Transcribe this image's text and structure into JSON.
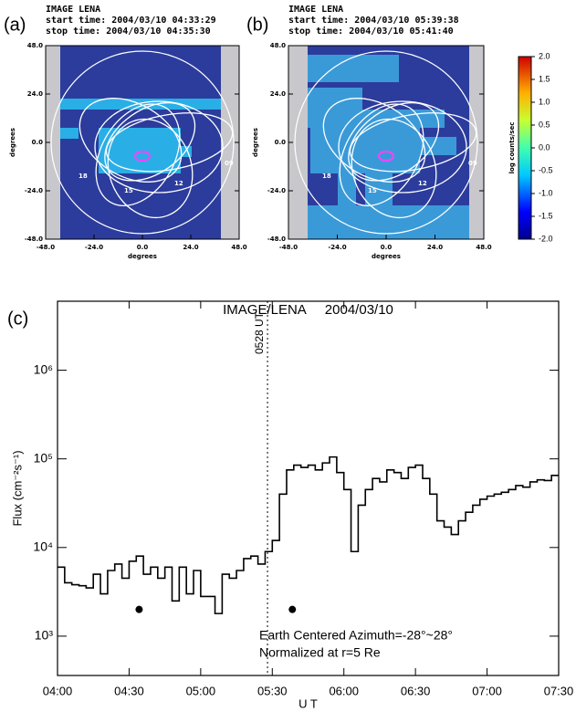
{
  "chart_data": [
    {
      "type": "image",
      "panel": "(a)",
      "title": "IMAGE LENA",
      "subtitle": [
        "start time: 2004/03/10 04:33:29",
        "stop time: 2004/03/10 04:35:30"
      ],
      "xlabel": "degrees",
      "ylabel": "degrees",
      "xlim": [
        -48,
        48
      ],
      "ylim": [
        -48,
        48
      ],
      "xticks": [
        {
          "value": -48,
          "label": "-48.0"
        },
        {
          "value": -24,
          "label": "-24.0"
        },
        {
          "value": 0,
          "label": "0.0"
        },
        {
          "value": 24,
          "label": "24.0"
        },
        {
          "value": 48,
          "label": "48.0"
        }
      ],
      "yticks": [
        {
          "value": -48,
          "label": "-48.0"
        },
        {
          "value": -24,
          "label": "-24.0"
        },
        {
          "value": 0,
          "label": "0.0"
        },
        {
          "value": 24,
          "label": "24.0"
        },
        {
          "value": 48,
          "label": "48.0"
        }
      ],
      "orbit_labels": [
        "18",
        "15",
        "12",
        "09"
      ]
    },
    {
      "type": "image",
      "panel": "(b)",
      "title": "IMAGE LENA",
      "subtitle": [
        "start time: 2004/03/10 05:39:38",
        "stop time: 2004/03/10 05:41:40"
      ],
      "xlabel": "degrees",
      "ylabel": "degrees",
      "xlim": [
        -48,
        48
      ],
      "ylim": [
        -48,
        48
      ],
      "xticks": [
        {
          "value": -48,
          "label": "-48.0"
        },
        {
          "value": -24,
          "label": "-24.0"
        },
        {
          "value": 0,
          "label": "0.0"
        },
        {
          "value": 24,
          "label": "24.0"
        },
        {
          "value": 48,
          "label": "48.0"
        }
      ],
      "yticks": [
        {
          "value": -48,
          "label": "-48.0"
        },
        {
          "value": -24,
          "label": "-24.0"
        },
        {
          "value": 0,
          "label": "0.0"
        },
        {
          "value": 24,
          "label": "24.0"
        },
        {
          "value": 48,
          "label": "48.0"
        }
      ],
      "orbit_labels": [
        "18",
        "15",
        "12",
        "09"
      ],
      "colorbar": {
        "label": "log counts/sec",
        "lim": [
          -2,
          2
        ],
        "ticks": [
          {
            "value": 2,
            "label": "2.0"
          },
          1.5,
          {
            "value": 1,
            "label": "1.0"
          },
          0.5,
          {
            "value": 0,
            "label": "0.0"
          },
          -0.5,
          {
            "value": -1,
            "label": "-1.0"
          },
          -1.5,
          {
            "value": -2,
            "label": "-2.0"
          }
        ]
      }
    },
    {
      "type": "step",
      "panel": "(c)",
      "title": "IMAGE/LENA     2004/03/10",
      "xlabel": "U T",
      "ylabel": "Flux (cm⁻²s⁻¹)",
      "log_y": true,
      "xlim": [
        4,
        7.5
      ],
      "xticks": [
        {
          "value": 4,
          "label": "04:00"
        },
        {
          "value": 4.5,
          "label": "04:30"
        },
        {
          "value": 5,
          "label": "05:00"
        },
        {
          "value": 5.5,
          "label": "05:30"
        },
        {
          "value": 6,
          "label": "06:00"
        },
        {
          "value": 6.5,
          "label": "06:30"
        },
        {
          "value": 7,
          "label": "07:00"
        },
        {
          "value": 7.5,
          "label": "07:30"
        }
      ],
      "ylim": [
        360,
        6000000
      ],
      "yticks": [
        {
          "value": 1000,
          "label": "10³"
        },
        {
          "value": 10000,
          "label": "10⁴"
        },
        {
          "value": 100000,
          "label": "10⁵"
        },
        {
          "value": 1000000,
          "label": "10⁶"
        }
      ],
      "color": "#000000",
      "x": [
        4.0,
        4.05,
        4.1,
        4.15,
        4.2,
        4.25,
        4.3,
        4.35,
        4.4,
        4.45,
        4.5,
        4.55,
        4.6,
        4.65,
        4.7,
        4.75,
        4.8,
        4.85,
        4.9,
        4.95,
        5.0,
        5.05,
        5.1,
        5.15,
        5.2,
        5.25,
        5.3,
        5.35,
        5.4,
        5.45,
        5.5,
        5.55,
        5.6,
        5.65,
        5.7,
        5.75,
        5.8,
        5.85,
        5.9,
        5.95,
        6.0,
        6.05,
        6.1,
        6.15,
        6.2,
        6.25,
        6.3,
        6.35,
        6.4,
        6.45,
        6.5,
        6.55,
        6.6,
        6.65,
        6.7,
        6.75,
        6.8,
        6.85,
        6.9,
        6.95,
        7.0,
        7.05,
        7.1,
        7.15,
        7.2,
        7.25,
        7.3,
        7.35,
        7.4,
        7.45
      ],
      "values": [
        6000,
        4000,
        3800,
        3700,
        3500,
        5000,
        3000,
        5500,
        6500,
        4500,
        7000,
        8000,
        5000,
        6000,
        4500,
        6000,
        2500,
        6000,
        3000,
        5500,
        2800,
        2800,
        1800,
        5000,
        4500,
        5500,
        7500,
        8000,
        6500,
        9000,
        12000,
        40000,
        75000,
        85000,
        80000,
        85000,
        75000,
        90000,
        105000,
        70000,
        45000,
        9000,
        30000,
        45000,
        60000,
        55000,
        75000,
        70000,
        60000,
        80000,
        85000,
        60000,
        40000,
        20000,
        17000,
        14000,
        20000,
        25000,
        30000,
        35000,
        38000,
        40000,
        42000,
        45000,
        50000,
        48000,
        55000,
        58000,
        57000,
        65000
      ],
      "vline": {
        "x": 5.4667,
        "label": "0528 UT"
      },
      "markers": {
        "x": [
          4.57,
          5.64
        ],
        "y": [
          2000,
          2000
        ]
      },
      "annotations": [
        "Earth Centered Azimuth=-28°~28°",
        "Normalized at r=5 Re"
      ]
    }
  ]
}
